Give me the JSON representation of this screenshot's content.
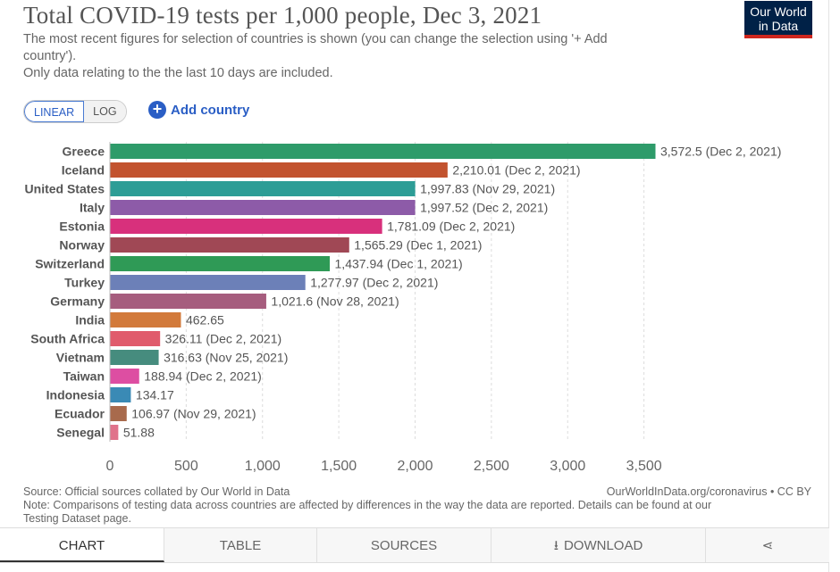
{
  "header": {
    "title": "Total COVID-19 tests per 1,000 people, Dec 3, 2021",
    "subtitle_lines": [
      "The most recent figures for selection of countries is shown (you can change the selection using '+ Add",
      "country').",
      "Only data relating to the the last 10 days are included."
    ],
    "logo_line1": "Our World",
    "logo_line2": "in Data"
  },
  "controls": {
    "linear_label": "LINEAR",
    "log_label": "LOG",
    "add_country_label": "Add country",
    "plus_glyph": "+"
  },
  "chart_data": {
    "type": "bar",
    "orientation": "horizontal",
    "title": "Total COVID-19 tests per 1,000 people, Dec 3, 2021",
    "xlim": [
      0,
      3572.5
    ],
    "ticks": [
      0,
      500,
      1000,
      1500,
      2000,
      2500,
      3000,
      3500
    ],
    "tick_labels": [
      "0",
      "500",
      "1,000",
      "1,500",
      "2,000",
      "2,500",
      "3,000",
      "3,500"
    ],
    "bars": [
      {
        "category": "Greece",
        "value": 3572.5,
        "label": "3,572.5 (Dec 2, 2021)",
        "color": "#2e9b6a"
      },
      {
        "category": "Iceland",
        "value": 2210.01,
        "label": "2,210.01 (Dec 2, 2021)",
        "color": "#c2532f"
      },
      {
        "category": "United States",
        "value": 1997.83,
        "label": "1,997.83 (Nov 29, 2021)",
        "color": "#2d9d96"
      },
      {
        "category": "Italy",
        "value": 1997.52,
        "label": "1,997.52 (Dec 2, 2021)",
        "color": "#8d5ba8"
      },
      {
        "category": "Estonia",
        "value": 1781.09,
        "label": "1,781.09 (Dec 2, 2021)",
        "color": "#d8307c"
      },
      {
        "category": "Norway",
        "value": 1565.29,
        "label": "1,565.29 (Dec 1, 2021)",
        "color": "#a04855"
      },
      {
        "category": "Switzerland",
        "value": 1437.94,
        "label": "1,437.94 (Dec 1, 2021)",
        "color": "#2f9a56"
      },
      {
        "category": "Turkey",
        "value": 1277.97,
        "label": "1,277.97 (Dec 2, 2021)",
        "color": "#6c80b8"
      },
      {
        "category": "Germany",
        "value": 1021.6,
        "label": "1,021.6 (Nov 28, 2021)",
        "color": "#a65d7e"
      },
      {
        "category": "India",
        "value": 462.65,
        "label": "462.65",
        "color": "#d27a3b"
      },
      {
        "category": "South Africa",
        "value": 326.11,
        "label": "326.11 (Dec 2, 2021)",
        "color": "#e05b6c"
      },
      {
        "category": "Vietnam",
        "value": 316.63,
        "label": "316.63 (Nov 25, 2021)",
        "color": "#468c7e"
      },
      {
        "category": "Taiwan",
        "value": 188.94,
        "label": "188.94 (Dec 2, 2021)",
        "color": "#dd4ea2"
      },
      {
        "category": "Indonesia",
        "value": 134.17,
        "label": "134.17",
        "color": "#3a8ab5"
      },
      {
        "category": "Ecuador",
        "value": 106.97,
        "label": "106.97 (Nov 29, 2021)",
        "color": "#a86a4c"
      },
      {
        "category": "Senegal",
        "value": 51.88,
        "label": "51.88",
        "color": "#e0738a"
      }
    ]
  },
  "footer": {
    "source_line": "Source: Official sources collated by Our World in Data",
    "credit": "OurWorldInData.org/coronavirus • CC BY",
    "note_line1": "Note: Comparisons of testing data across countries are affected by differences in the way the data are reported. Details can be found at our",
    "note_line2": "Testing Dataset page."
  },
  "tabs": {
    "chart": "CHART",
    "table": "TABLE",
    "sources": "SOURCES",
    "download": "DOWNLOAD",
    "download_glyph": "⭳",
    "share_glyph": "⋖"
  }
}
